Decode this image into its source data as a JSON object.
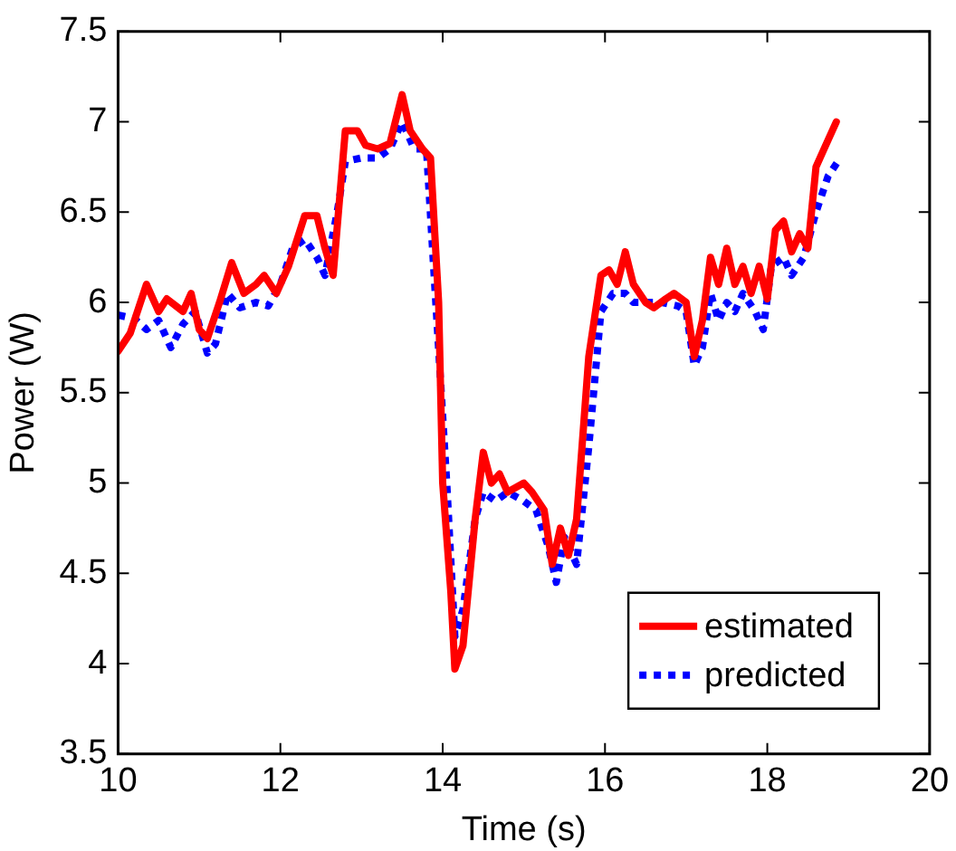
{
  "chart_data": {
    "type": "line",
    "xlabel": "Time (s)",
    "ylabel": "Power (W)",
    "xlim": [
      10,
      20
    ],
    "xticks": [
      10,
      12,
      14,
      16,
      18,
      20
    ],
    "ylim": [
      3.5,
      7.5
    ],
    "yticks": [
      3.5,
      4,
      4.5,
      5,
      5.5,
      6,
      6.5,
      7,
      7.5
    ],
    "grid": false,
    "legend": "bottom right",
    "marker": "none",
    "series": [
      {
        "name": "estimated",
        "color": "#ff0000",
        "line_style": "solid",
        "x": [
          10.0,
          10.15,
          10.35,
          10.5,
          10.6,
          10.8,
          10.9,
          11.0,
          11.1,
          11.25,
          11.4,
          11.55,
          11.7,
          11.8,
          11.95,
          12.1,
          12.3,
          12.45,
          12.55,
          12.65,
          12.8,
          12.95,
          13.05,
          13.2,
          13.35,
          13.5,
          13.6,
          13.75,
          13.85,
          13.95,
          14.0,
          14.1,
          14.15,
          14.25,
          14.4,
          14.5,
          14.6,
          14.7,
          14.8,
          15.0,
          15.1,
          15.25,
          15.35,
          15.45,
          15.55,
          15.65,
          15.8,
          15.95,
          16.05,
          16.15,
          16.25,
          16.35,
          16.5,
          16.6,
          16.75,
          16.85,
          17.0,
          17.1,
          17.2,
          17.3,
          17.4,
          17.5,
          17.6,
          17.7,
          17.8,
          17.9,
          18.0,
          18.1,
          18.2,
          18.3,
          18.4,
          18.5,
          18.6,
          18.7,
          18.85
        ],
        "values": [
          5.73,
          5.83,
          6.1,
          5.95,
          6.02,
          5.95,
          6.05,
          5.85,
          5.8,
          6.0,
          6.22,
          6.05,
          6.1,
          6.15,
          6.05,
          6.2,
          6.48,
          6.48,
          6.3,
          6.15,
          6.95,
          6.95,
          6.87,
          6.85,
          6.88,
          7.15,
          6.95,
          6.85,
          6.8,
          6.0,
          5.0,
          4.4,
          3.97,
          4.1,
          4.8,
          5.17,
          5.0,
          5.05,
          4.95,
          5.0,
          4.95,
          4.85,
          4.55,
          4.75,
          4.6,
          4.8,
          5.7,
          6.15,
          6.18,
          6.1,
          6.28,
          6.1,
          6.0,
          5.97,
          6.02,
          6.05,
          6.0,
          5.7,
          5.9,
          6.25,
          6.1,
          6.3,
          6.1,
          6.2,
          6.05,
          6.2,
          6.02,
          6.4,
          6.45,
          6.28,
          6.38,
          6.3,
          6.75,
          6.85,
          7.0
        ]
      },
      {
        "name": "predicted",
        "color": "#0000ff",
        "line_style": "dotted",
        "x": [
          10.0,
          10.2,
          10.35,
          10.5,
          10.65,
          10.8,
          10.95,
          11.1,
          11.2,
          11.35,
          11.5,
          11.7,
          11.85,
          12.0,
          12.15,
          12.3,
          12.45,
          12.55,
          12.7,
          12.8,
          13.0,
          13.2,
          13.35,
          13.5,
          13.65,
          13.8,
          14.05,
          14.15,
          14.25,
          14.4,
          14.5,
          14.65,
          14.8,
          15.0,
          15.15,
          15.3,
          15.4,
          15.5,
          15.65,
          15.8,
          15.95,
          16.1,
          16.25,
          16.35,
          16.5,
          16.7,
          16.9,
          17.0,
          17.1,
          17.2,
          17.3,
          17.4,
          17.5,
          17.6,
          17.7,
          17.85,
          17.95,
          18.05,
          18.2,
          18.3,
          18.45,
          18.6,
          18.75,
          18.9
        ],
        "values": [
          5.93,
          5.91,
          5.85,
          5.9,
          5.75,
          5.88,
          5.95,
          5.72,
          5.77,
          6.05,
          5.97,
          6.0,
          5.98,
          6.1,
          6.3,
          6.35,
          6.25,
          6.15,
          6.5,
          6.78,
          6.8,
          6.8,
          6.85,
          7.0,
          6.85,
          6.85,
          5.0,
          4.15,
          4.3,
          4.8,
          4.95,
          4.9,
          4.95,
          4.9,
          4.85,
          4.65,
          4.45,
          4.7,
          4.55,
          5.2,
          5.95,
          6.05,
          6.05,
          6.0,
          6.0,
          6.0,
          5.98,
          5.95,
          5.65,
          5.75,
          6.05,
          5.9,
          6.0,
          5.95,
          6.05,
          5.95,
          5.85,
          6.2,
          6.25,
          6.15,
          6.25,
          6.5,
          6.7,
          6.8
        ]
      }
    ]
  }
}
